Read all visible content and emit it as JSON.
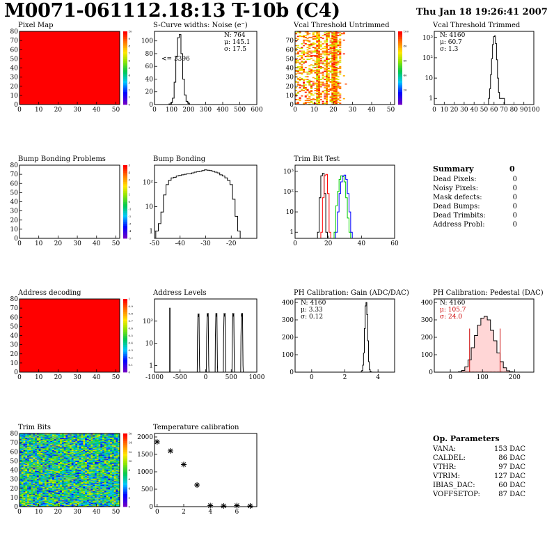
{
  "header": {
    "title": "M0071-061112.18:13 T-10b (C4)",
    "date": "Thu Jan 18 19:26:41 2007"
  },
  "chart_data": [
    {
      "id": "pixel_map",
      "type": "heatmap",
      "title": "Pixel Map",
      "xlim": [
        0,
        52
      ],
      "ylim": [
        0,
        80
      ],
      "xticks": [
        0,
        10,
        20,
        30,
        40,
        50
      ],
      "yticks": [
        0,
        10,
        20,
        30,
        40,
        50,
        60,
        70,
        80
      ],
      "fill": "uniform",
      "value": 10,
      "zlim": [
        0,
        10
      ],
      "zticks": [
        0,
        1,
        2,
        3,
        4,
        5,
        6,
        7,
        8,
        9,
        10
      ]
    },
    {
      "id": "scurve",
      "type": "histogram",
      "title": "S-Curve widths: Noise (e⁻)",
      "xlim": [
        0,
        600
      ],
      "ylim": [
        0,
        115
      ],
      "xticks": [
        0,
        100,
        200,
        300,
        400,
        500,
        600
      ],
      "yticks": [
        0,
        20,
        40,
        60,
        80,
        100
      ],
      "stats": [
        "N:  764",
        "μ: 145.1",
        "σ: 17.5"
      ],
      "annotation": "<= 3396",
      "x": [
        90,
        100,
        110,
        120,
        130,
        140,
        150,
        160,
        170,
        180,
        190,
        200,
        210
      ],
      "values": [
        1,
        3,
        10,
        35,
        75,
        105,
        110,
        80,
        40,
        15,
        5,
        2,
        0
      ]
    },
    {
      "id": "vcal_untrimmed",
      "type": "heatmap",
      "title": "Vcal Threshold Untrimmed",
      "xlim": [
        0,
        52
      ],
      "ylim": [
        0,
        80
      ],
      "xticks": [
        0,
        10,
        20,
        30,
        40,
        50
      ],
      "yticks": [
        0,
        10,
        20,
        30,
        40,
        50,
        60,
        70
      ],
      "zlim": [
        0,
        100
      ],
      "zticks": [
        20,
        40,
        60,
        80,
        100
      ]
    },
    {
      "id": "vcal_trimmed",
      "type": "histogram",
      "title": "Vcal Threshold Trimmed",
      "log": true,
      "xlim": [
        0,
        100
      ],
      "ylim": [
        0.5,
        2000
      ],
      "xticks": [
        0,
        10,
        20,
        30,
        40,
        50,
        60,
        70,
        80,
        90,
        100
      ],
      "yticks": [
        1,
        10,
        100,
        1000
      ],
      "stats": [
        "N: 4160",
        "μ: 60.7",
        "σ:  1.3"
      ],
      "x": [
        55,
        56,
        57,
        58,
        59,
        60,
        61,
        62,
        63,
        64,
        65,
        66,
        70
      ],
      "values": [
        1,
        3,
        15,
        90,
        450,
        1100,
        1200,
        500,
        80,
        10,
        2,
        1,
        1
      ]
    },
    {
      "id": "bump_problems",
      "type": "heatmap",
      "title": "Bump Bonding Problems",
      "xlim": [
        0,
        52
      ],
      "ylim": [
        0,
        80
      ],
      "xticks": [
        0,
        10,
        20,
        30,
        40,
        50
      ],
      "yticks": [
        0,
        10,
        20,
        30,
        40,
        50,
        60,
        70,
        80
      ],
      "fill": "empty",
      "zlim": [
        -5,
        5
      ],
      "zticks": [
        -5,
        -4,
        -3,
        -2,
        -1,
        0,
        1,
        2,
        3,
        4,
        5
      ]
    },
    {
      "id": "bump_bonding",
      "type": "histogram",
      "title": "Bump Bonding",
      "log": true,
      "xlim": [
        -50,
        -10
      ],
      "ylim": [
        0.5,
        500
      ],
      "xticks": [
        -50,
        -40,
        -30,
        -20
      ],
      "yticks": [
        1,
        10,
        100
      ],
      "x": [
        -49,
        -48,
        -47,
        -46,
        -45,
        -44,
        -43,
        -42,
        -41,
        -40,
        -39,
        -38,
        -37,
        -36,
        -35,
        -34,
        -33,
        -32,
        -31,
        -30,
        -29,
        -28,
        -27,
        -26,
        -25,
        -24,
        -23,
        -22,
        -21,
        -20,
        -19,
        -18,
        -17,
        -16,
        -15
      ],
      "values": [
        1,
        2,
        6,
        30,
        80,
        120,
        150,
        160,
        180,
        190,
        200,
        210,
        220,
        220,
        240,
        260,
        270,
        280,
        300,
        320,
        310,
        300,
        280,
        260,
        240,
        200,
        180,
        150,
        120,
        80,
        20,
        4,
        1,
        0,
        0
      ]
    },
    {
      "id": "trim_bit_test",
      "type": "line",
      "title": "Trim Bit Test",
      "log": true,
      "xlim": [
        0,
        60
      ],
      "ylim": [
        0.5,
        2000
      ],
      "xticks": [
        0,
        20,
        40,
        60
      ],
      "yticks": [
        1,
        10,
        100,
        1000
      ],
      "series": [
        {
          "color": "#000000",
          "x": [
            14,
            15,
            16,
            17,
            18,
            19
          ],
          "values": [
            1,
            50,
            600,
            800,
            80,
            1
          ]
        },
        {
          "color": "#ff0000",
          "x": [
            16,
            17,
            18,
            19,
            20,
            21
          ],
          "values": [
            1,
            50,
            600,
            700,
            80,
            1
          ]
        },
        {
          "color": "#00cc00",
          "x": [
            24,
            25,
            26,
            27,
            28,
            29,
            30,
            31,
            32,
            33
          ],
          "values": [
            1,
            20,
            100,
            400,
            600,
            550,
            300,
            50,
            5,
            1
          ]
        },
        {
          "color": "#0000ff",
          "x": [
            25,
            26,
            27,
            28,
            29,
            30,
            31,
            32,
            33,
            34
          ],
          "values": [
            1,
            10,
            80,
            300,
            600,
            650,
            400,
            80,
            10,
            1
          ]
        }
      ]
    },
    {
      "id": "address_decoding",
      "type": "heatmap",
      "title": "Address decoding",
      "xlim": [
        0,
        52
      ],
      "ylim": [
        0,
        80
      ],
      "xticks": [
        0,
        10,
        20,
        30,
        40,
        50
      ],
      "yticks": [
        0,
        10,
        20,
        30,
        40,
        50,
        60,
        70,
        80
      ],
      "fill": "uniform",
      "value": 1,
      "zlim": [
        0,
        1
      ],
      "zticks": [
        0,
        0.1,
        0.2,
        0.3,
        0.4,
        0.5,
        0.6,
        0.7,
        0.8,
        0.9,
        1
      ]
    },
    {
      "id": "address_levels",
      "type": "histogram",
      "title": "Address Levels",
      "log": true,
      "xlim": [
        -1000,
        1000
      ],
      "ylim": [
        0.5,
        1000
      ],
      "xticks": [
        -1000,
        -500,
        0,
        500,
        1000
      ],
      "yticks": [
        1,
        10,
        100
      ],
      "spikes": [
        {
          "x": -700,
          "peak": 400
        },
        {
          "x": -120,
          "peak": 220
        },
        {
          "x": 60,
          "peak": 230
        },
        {
          "x": 230,
          "peak": 230
        },
        {
          "x": 390,
          "peak": 230
        },
        {
          "x": 560,
          "peak": 230
        },
        {
          "x": 730,
          "peak": 230
        }
      ]
    },
    {
      "id": "ph_gain",
      "type": "histogram",
      "title": "PH Calibration: Gain (ADC/DAC)",
      "xlim": [
        -1,
        5
      ],
      "ylim": [
        0,
        420
      ],
      "xticks": [
        0,
        2,
        4
      ],
      "yticks": [
        0,
        100,
        200,
        300,
        400
      ],
      "stats": [
        "N: 4160",
        "μ: 3.33",
        "σ: 0.12"
      ],
      "x": [
        3.0,
        3.05,
        3.1,
        3.15,
        3.2,
        3.25,
        3.3,
        3.35,
        3.4,
        3.45,
        3.5,
        3.55,
        3.6
      ],
      "values": [
        2,
        10,
        40,
        110,
        250,
        380,
        400,
        330,
        180,
        60,
        15,
        4,
        1
      ]
    },
    {
      "id": "ph_pedestal",
      "type": "histogram",
      "title": "PH Calibration: Pedestal (DAC)",
      "xlim": [
        -50,
        260
      ],
      "ylim": [
        0,
        420
      ],
      "xticks": [
        0,
        100,
        200
      ],
      "yticks": [
        0,
        100,
        200,
        300,
        400
      ],
      "stats": [
        "N: 4160",
        "μ: 105.7",
        "σ: 24.0"
      ],
      "cut_lines": [
        60,
        155
      ],
      "x": [
        30,
        40,
        50,
        60,
        70,
        80,
        90,
        100,
        110,
        120,
        130,
        140,
        150,
        160,
        170,
        180,
        190
      ],
      "values": [
        2,
        10,
        30,
        70,
        140,
        210,
        270,
        310,
        320,
        300,
        240,
        180,
        110,
        60,
        25,
        8,
        2
      ]
    },
    {
      "id": "trim_bits",
      "type": "heatmap",
      "title": "Trim Bits",
      "xlim": [
        0,
        52
      ],
      "ylim": [
        0,
        80
      ],
      "xticks": [
        0,
        10,
        20,
        30,
        40,
        50
      ],
      "yticks": [
        0,
        10,
        20,
        30,
        40,
        50,
        60,
        70,
        80
      ],
      "fill": "random",
      "zlim": [
        0,
        16
      ],
      "zticks": [
        0,
        2,
        4,
        6,
        8,
        10,
        12,
        14,
        16
      ]
    },
    {
      "id": "temperature_calibration",
      "type": "scatter",
      "title": "Temperature calibration",
      "xlim": [
        -0.2,
        7.5
      ],
      "ylim": [
        0,
        2100
      ],
      "xticks": [
        0,
        2,
        4,
        6
      ],
      "yticks": [
        0,
        500,
        1000,
        1500,
        2000
      ],
      "x": [
        0,
        1,
        2,
        3,
        4,
        5,
        6,
        7
      ],
      "values": [
        1860,
        1600,
        1210,
        620,
        30,
        20,
        30,
        20
      ]
    }
  ],
  "summary": {
    "heading": "Summary",
    "total": "0",
    "rows": [
      {
        "label": "Dead Pixels:",
        "value": "0"
      },
      {
        "label": "Noisy Pixels:",
        "value": "0"
      },
      {
        "label": "Mask defects:",
        "value": "0"
      },
      {
        "label": "Dead Bumps:",
        "value": "0"
      },
      {
        "label": "Dead Trimbits:",
        "value": "0"
      },
      {
        "label": "Address Probl:",
        "value": "0"
      }
    ]
  },
  "op_parameters": {
    "heading": "Op. Parameters",
    "rows": [
      {
        "label": "VANA:",
        "value": "153 DAC"
      },
      {
        "label": "CALDEL:",
        "value": "86 DAC"
      },
      {
        "label": "VTHR:",
        "value": "97 DAC"
      },
      {
        "label": "VTRIM:",
        "value": "127 DAC"
      },
      {
        "label": "IBIAS_DAC:",
        "value": "60 DAC"
      },
      {
        "label": "VOFFSETOP:",
        "value": "87 DAC"
      }
    ]
  }
}
